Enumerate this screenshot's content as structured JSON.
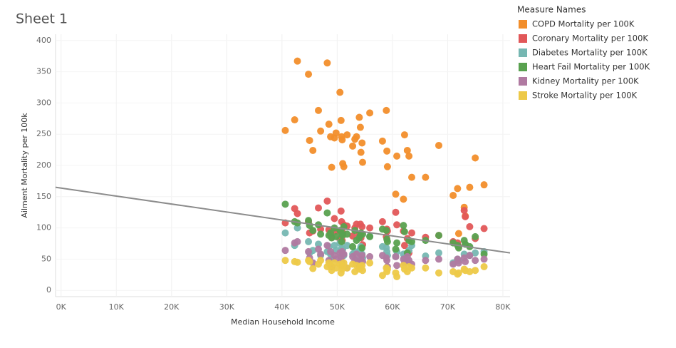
{
  "chart_data": {
    "type": "scatter",
    "title": "Sheet 1",
    "x_label": "Median Household Income",
    "y_label": "Ailment Mortality per 100k",
    "legend_title": "Measure Names",
    "legend_position": "right",
    "grid": true,
    "xlim": [
      -1000,
      81300
    ],
    "ylim": [
      -10,
      410
    ],
    "xticks": [
      {
        "value": 0,
        "label": "0K"
      },
      {
        "value": 10000,
        "label": "10K"
      },
      {
        "value": 20000,
        "label": "20K"
      },
      {
        "value": 30000,
        "label": "30K"
      },
      {
        "value": 40000,
        "label": "40K"
      },
      {
        "value": 50000,
        "label": "50K"
      },
      {
        "value": 60000,
        "label": "60K"
      },
      {
        "value": 70000,
        "label": "70K"
      },
      {
        "value": 80000,
        "label": "80K"
      }
    ],
    "yticks": [
      0,
      50,
      100,
      150,
      200,
      250,
      300,
      350,
      400
    ],
    "x": [
      40600,
      42300,
      42800,
      44800,
      45000,
      45600,
      46600,
      47000,
      48200,
      48500,
      48800,
      49000,
      49500,
      49800,
      50500,
      50700,
      50800,
      50900,
      51000,
      51200,
      51800,
      52800,
      53200,
      53500,
      54000,
      54200,
      54300,
      54500,
      54600,
      55900,
      58200,
      58900,
      59000,
      59100,
      60600,
      60800,
      62000,
      62200,
      62700,
      63000,
      63500,
      66000,
      68400,
      71000,
      71800,
      72000,
      73000,
      73200,
      74000,
      75000,
      76600
    ],
    "series": [
      {
        "name": "COPD Mortality per 100K",
        "color": "#f28e2b",
        "values": [
          256,
          273,
          367,
          346,
          240,
          224,
          288,
          255,
          364,
          266,
          246,
          197,
          244,
          252,
          317,
          272,
          246,
          241,
          203,
          198,
          249,
          231,
          242,
          246,
          277,
          261,
          221,
          236,
          205,
          284,
          239,
          288,
          223,
          198,
          154,
          215,
          146,
          249,
          224,
          215,
          181,
          181,
          232,
          152,
          163,
          91,
          133,
          119,
          165,
          212,
          169
        ]
      },
      {
        "name": "Coronary Mortality per 100K",
        "color": "#e15759",
        "values": [
          108,
          131,
          123,
          110,
          92,
          95,
          132,
          98,
          143,
          97,
          90,
          85,
          115,
          95,
          82,
          127,
          110,
          80,
          92,
          105,
          103,
          87,
          100,
          106,
          90,
          106,
          84,
          102,
          73,
          100,
          110,
          86,
          98,
          95,
          125,
          105,
          95,
          72,
          83,
          60,
          92,
          85,
          88,
          78,
          76,
          70,
          128,
          118,
          102,
          83,
          99
        ]
      },
      {
        "name": "Diabetes Mortality per 100K",
        "color": "#76b7b2",
        "values": [
          92,
          72,
          100,
          78,
          60,
          64,
          74,
          56,
          62,
          70,
          58,
          50,
          72,
          64,
          76,
          55,
          68,
          60,
          66,
          56,
          72,
          58,
          62,
          48,
          60,
          66,
          70,
          58,
          52,
          87,
          70,
          68,
          62,
          56,
          54,
          62,
          58,
          52,
          46,
          64,
          72,
          55,
          60,
          44,
          50,
          48,
          58,
          74,
          56,
          60,
          62
        ]
      },
      {
        "name": "Heart Fail Mortality per 100K",
        "color": "#59a14f",
        "values": [
          138,
          110,
          108,
          112,
          104,
          96,
          105,
          90,
          124,
          88,
          92,
          84,
          100,
          86,
          96,
          94,
          78,
          90,
          88,
          102,
          90,
          70,
          96,
          80,
          84,
          88,
          92,
          68,
          90,
          86,
          98,
          96,
          82,
          78,
          66,
          76,
          104,
          94,
          60,
          80,
          78,
          80,
          88,
          76,
          72,
          68,
          80,
          74,
          70,
          86,
          58
        ]
      },
      {
        "name": "Kidney Mortality per 100K",
        "color": "#b07aa1",
        "values": [
          64,
          76,
          78,
          62,
          52,
          44,
          66,
          58,
          72,
          48,
          62,
          38,
          56,
          50,
          60,
          52,
          46,
          62,
          40,
          58,
          36,
          54,
          48,
          58,
          38,
          44,
          50,
          56,
          46,
          54,
          56,
          52,
          48,
          38,
          54,
          40,
          50,
          44,
          54,
          48,
          42,
          48,
          50,
          42,
          50,
          44,
          52,
          46,
          56,
          48,
          50
        ]
      },
      {
        "name": "Stroke Mortality per 100K",
        "color": "#edc948",
        "values": [
          48,
          46,
          45,
          48,
          46,
          35,
          42,
          48,
          38,
          44,
          40,
          32,
          44,
          36,
          42,
          28,
          40,
          34,
          38,
          44,
          36,
          42,
          30,
          40,
          34,
          38,
          36,
          40,
          32,
          44,
          24,
          36,
          30,
          34,
          28,
          22,
          40,
          34,
          30,
          38,
          36,
          36,
          28,
          30,
          26,
          28,
          34,
          32,
          30,
          32,
          38
        ]
      }
    ],
    "trendline": {
      "color": "#8c8c8c",
      "x": [
        -1000,
        81300
      ],
      "y": [
        165,
        60
      ]
    }
  }
}
